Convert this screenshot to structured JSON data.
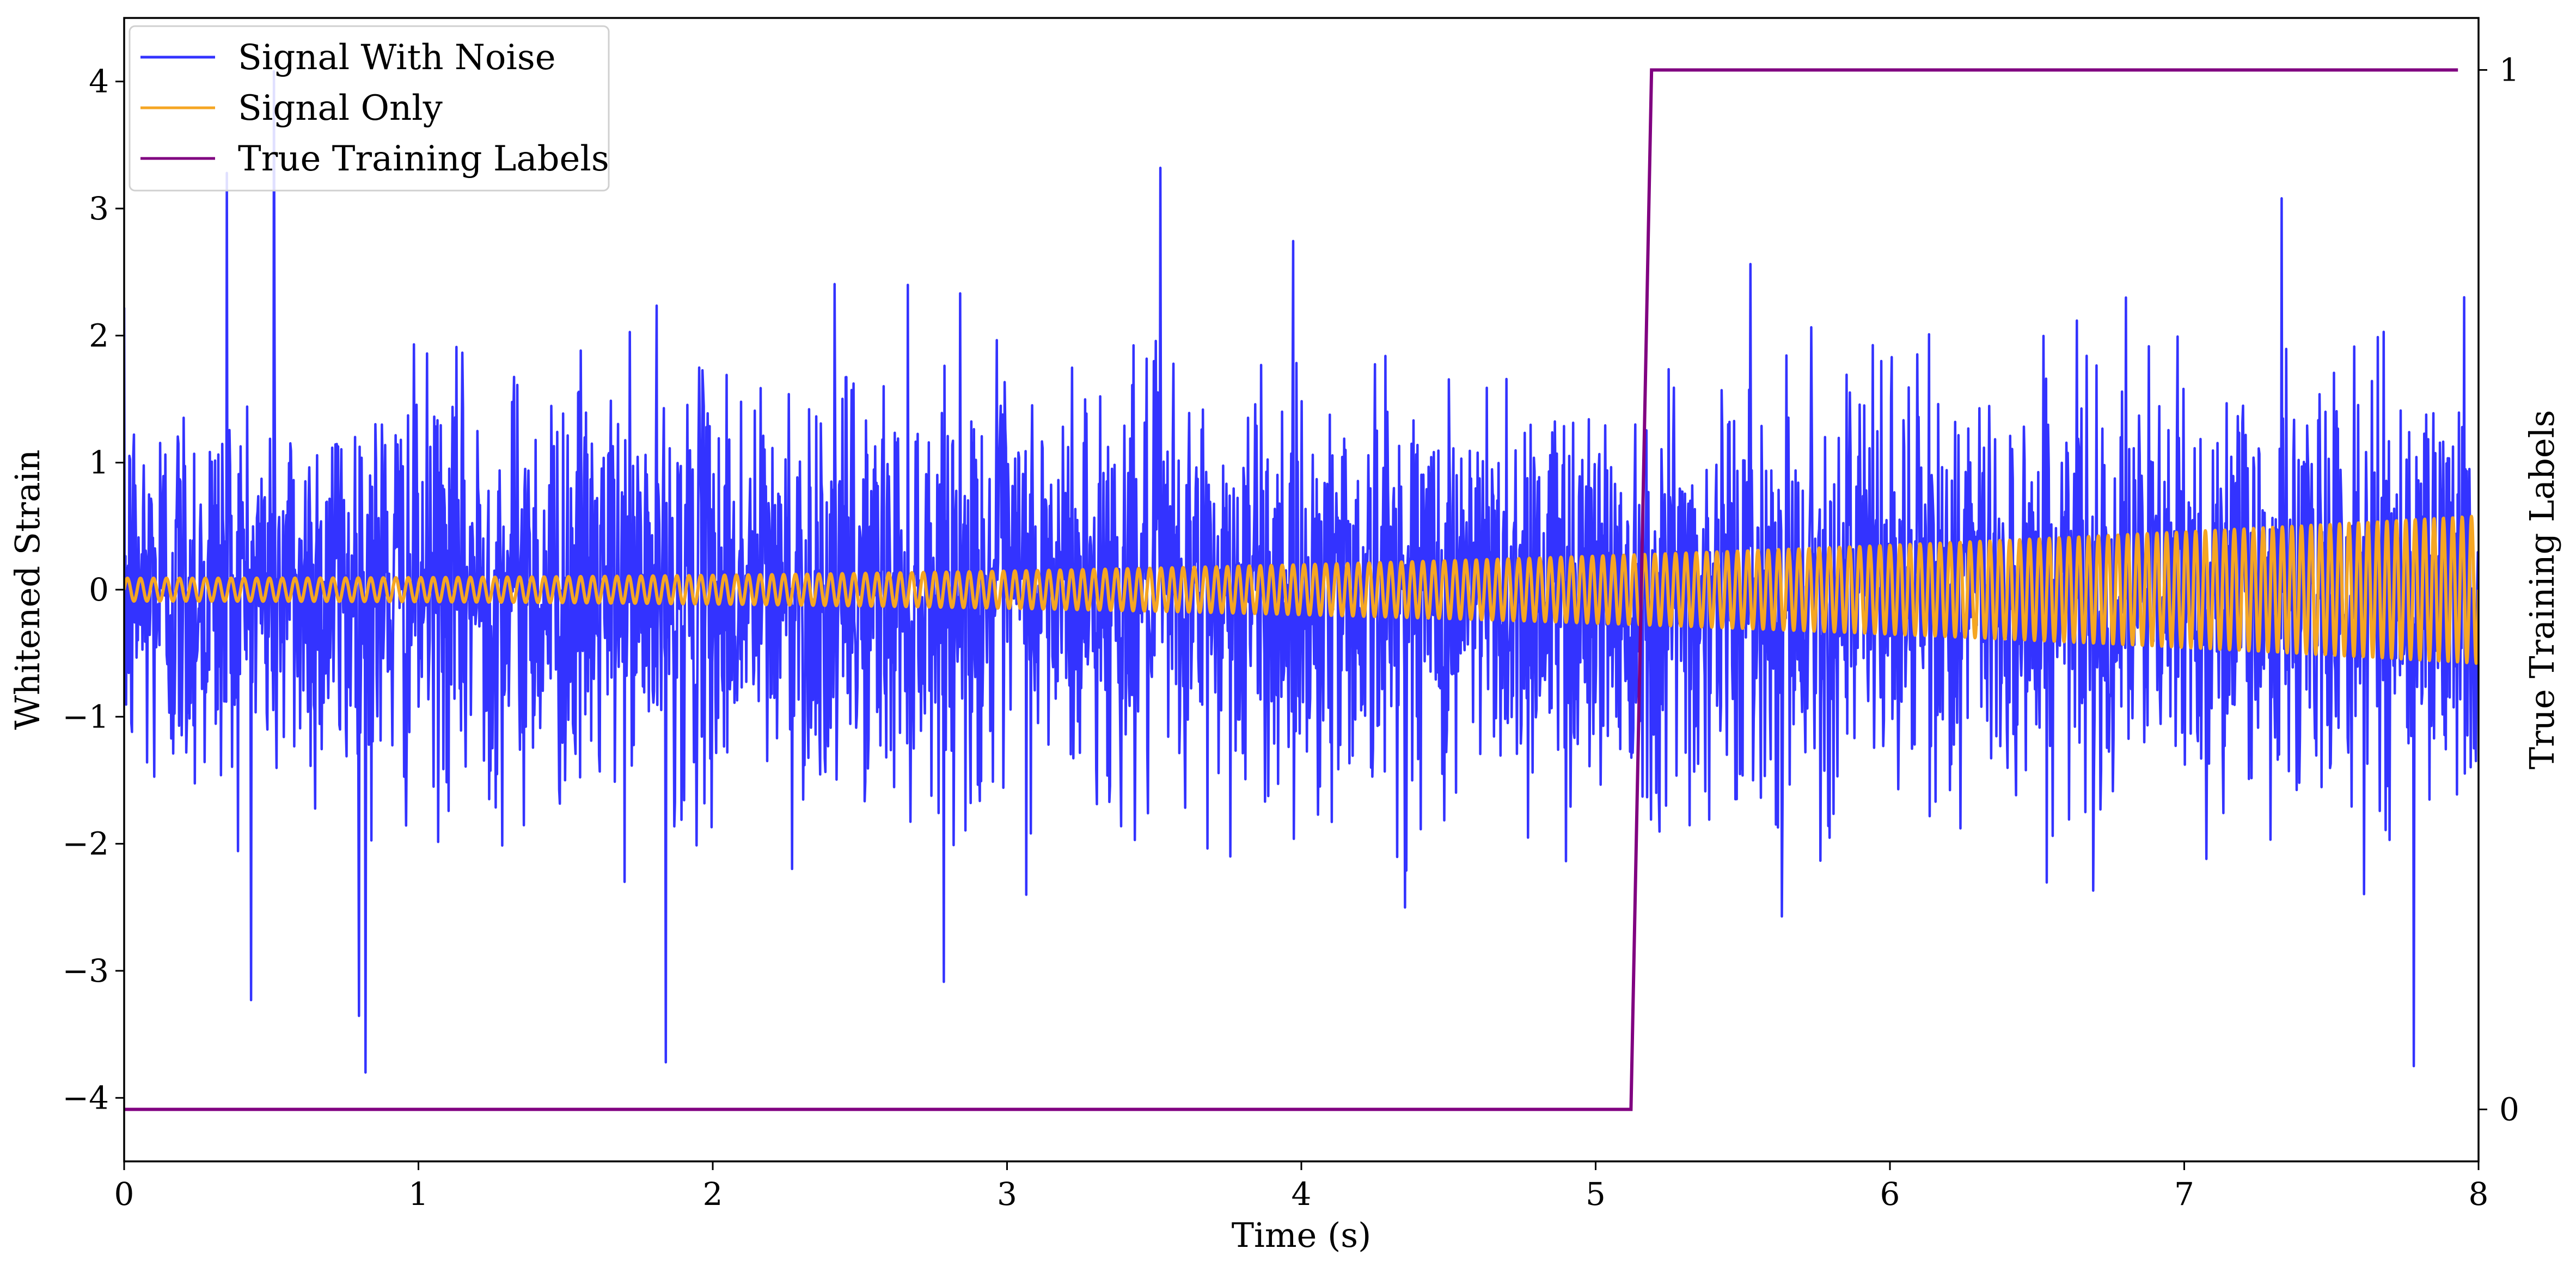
{
  "chart_data": {
    "type": "line",
    "xlabel": "Time (s)",
    "ylabel": "Whitened Strain",
    "ylabel_right": "True Training Labels",
    "xlim": [
      0,
      8
    ],
    "ylim": [
      -4.5,
      4.5
    ],
    "ylim_right": [
      -0.05,
      1.05
    ],
    "x_ticks": [
      0,
      1,
      2,
      3,
      4,
      5,
      6,
      7,
      8
    ],
    "y_ticks": [
      -4,
      -3,
      -2,
      -1,
      0,
      1,
      2,
      3,
      4
    ],
    "y_right_ticks": [
      0,
      1
    ],
    "grid": false,
    "legend_position": "top-left",
    "series": [
      {
        "name": "Signal With Noise",
        "axis": "left",
        "color": "#3333ff",
        "description_of_values": "Gaussian noise, std ~0.8, range about -3.8 to 4.1",
        "sample_count": 3600,
        "peak_values": [
          {
            "x": 0.35,
            "y": 3.28
          },
          {
            "x": 0.51,
            "y": 4.08
          },
          {
            "x": 0.82,
            "y": -3.8
          },
          {
            "x": 1.84,
            "y": -3.72
          },
          {
            "x": 3.52,
            "y": 3.32
          },
          {
            "x": 7.33,
            "y": 3.08
          },
          {
            "x": 7.78,
            "y": -3.75
          }
        ]
      },
      {
        "name": "Signal Only",
        "axis": "left",
        "color": "#f5a623",
        "chirp": {
          "amplitude_start": 0.09,
          "amplitude_end": 0.58,
          "cycles_over_range": 216
        }
      },
      {
        "name": "True Training Labels",
        "axis": "right",
        "color": "#800080",
        "x": [
          0,
          5.12,
          5.19,
          7.93
        ],
        "y": [
          0,
          0,
          1,
          1
        ]
      }
    ]
  }
}
